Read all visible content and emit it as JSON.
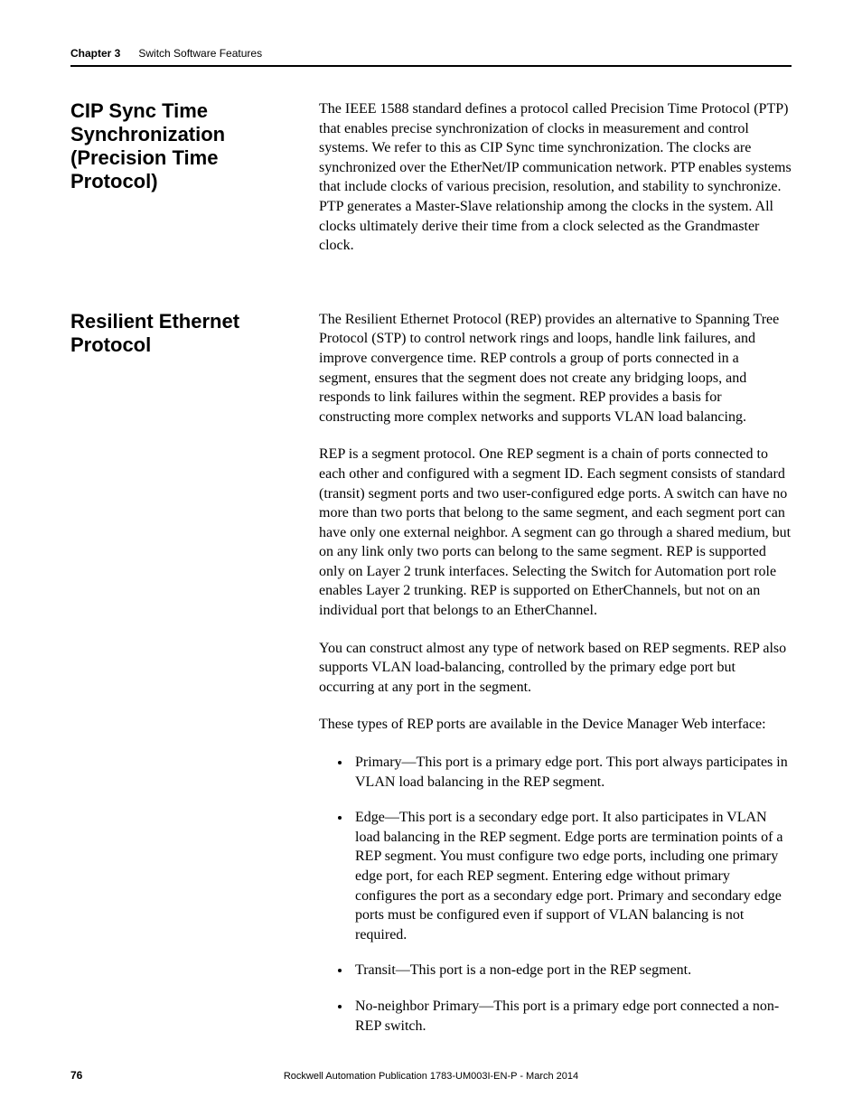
{
  "running_head": {
    "chapter": "Chapter 3",
    "title": "Switch Software Features"
  },
  "sections": [
    {
      "heading": "CIP Sync Time Synchronization (Precision Time Protocol)",
      "paragraphs": [
        "The IEEE 1588 standard defines a protocol called Precision Time Protocol (PTP) that enables precise synchronization of clocks in measurement and control systems. We refer to this as CIP Sync time synchronization. The clocks are synchronized over the EtherNet/IP communication network. PTP enables systems that include clocks of various precision, resolution, and stability to synchronize. PTP generates a Master-Slave relationship among the clocks in the system. All clocks ultimately derive their time from a clock selected as the Grandmaster clock."
      ]
    },
    {
      "heading": "Resilient Ethernet Protocol",
      "paragraphs": [
        "The Resilient Ethernet Protocol (REP) provides an alternative to Spanning Tree Protocol (STP) to control network rings and loops, handle link failures, and improve convergence time. REP controls a group of ports connected in a segment, ensures that the segment does not create any bridging loops, and responds to link failures within the segment. REP provides a basis for constructing more complex networks and supports VLAN load balancing.",
        "REP is a segment protocol. One REP segment is a chain of ports connected to each other and configured with a segment ID. Each segment consists of standard (transit) segment ports and two user-configured edge ports. A switch can have no more than two ports that belong to the same segment, and each segment port can have only one external neighbor. A segment can go through a shared medium, but on any link only two ports can belong to the same segment. REP is supported only on Layer 2 trunk interfaces. Selecting the Switch for Automation port role enables Layer 2 trunking. REP is supported on EtherChannels, but not on an individual port that belongs to an EtherChannel.",
        "You can construct almost any type of network based on REP segments. REP also supports VLAN load-balancing, controlled by the primary edge port but occurring at any port in the segment.",
        "These types of REP ports are available in the Device Manager Web interface:"
      ],
      "bullets": [
        "Primary—This port is a primary edge port. This port always participates in VLAN load balancing in the REP segment.",
        "Edge—This port is a secondary edge port. It also participates in VLAN load balancing in the REP segment. Edge ports are termination points of a REP segment. You must configure two edge ports, including one primary edge port, for each REP segment. Entering edge without primary configures the port as a secondary edge port. Primary and secondary edge ports must be configured even if support of VLAN balancing is not required.",
        "Transit—This port is a non-edge port in the REP segment.",
        "No-neighbor Primary—This port is a primary edge port connected a non-REP switch."
      ]
    }
  ],
  "footer": {
    "page": "76",
    "publication": "Rockwell Automation Publication 1783-UM003I-EN-P - March 2014"
  },
  "style": {
    "body_font": "Times New Roman",
    "heading_font": "Arial",
    "heading_color": "#000000",
    "body_color": "#000000",
    "rule_color": "#000000",
    "heading_size_pt": 22,
    "body_size_pt": 16
  }
}
